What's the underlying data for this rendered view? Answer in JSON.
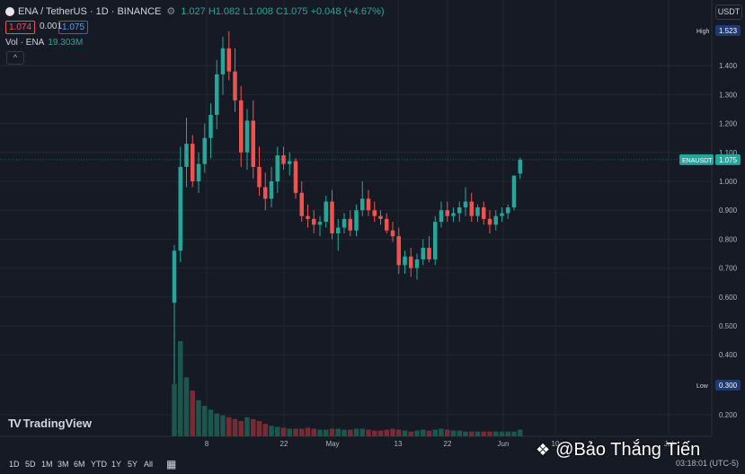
{
  "header": {
    "symbol_line": "ENA / TetherUS · 1D · BINANCE",
    "ohlc": "1.027 H1.082 L1.008 C1.075 +0.048 (+4.67%)",
    "bid": "1.074",
    "spread": "0.001",
    "ask": "1.075",
    "volume_label": "Vol · ENA",
    "volume_value": "19.303M",
    "collapse_glyph": "^",
    "currency": "USDT"
  },
  "price_axis": {
    "ticks": [
      "1.400",
      "1.300",
      "1.200",
      "1.100",
      "1.000",
      "0.900",
      "0.800",
      "0.700",
      "0.600",
      "0.500",
      "0.400",
      "0.200"
    ],
    "high_label": "High",
    "high_value": "1.523",
    "low_label": "Low",
    "low_value": "0.300",
    "last_label": "ENAUSDT",
    "last_value": "1.075"
  },
  "time_axis": {
    "labels": [
      "8",
      "22",
      "May",
      "13",
      "22",
      "Jun",
      "10",
      "Jul"
    ]
  },
  "colors": {
    "up": "#26a69a",
    "down": "#ef5350",
    "background": "#161a25",
    "grid": "#222631"
  },
  "logo": {
    "mark": "TV",
    "text": "TradingView"
  },
  "bottom_bar": {
    "ranges": [
      "1D",
      "5D",
      "1M",
      "3M",
      "6M",
      "YTD",
      "1Y",
      "5Y",
      "All"
    ],
    "calendar_icon": "calendar-icon",
    "time": "03:18:01 (UTC-5)"
  },
  "watermark": "@Bảo Thắng Tiến",
  "chart_data": {
    "type": "candlestick",
    "candles": [
      [
        0.58,
        0.78,
        0.3,
        0.76
      ],
      [
        0.76,
        1.12,
        0.72,
        1.05
      ],
      [
        1.05,
        1.22,
        0.98,
        1.13
      ],
      [
        1.13,
        1.16,
        0.98,
        1.0
      ],
      [
        1.0,
        1.1,
        0.96,
        1.06
      ],
      [
        1.06,
        1.2,
        1.03,
        1.15
      ],
      [
        1.15,
        1.27,
        1.08,
        1.23
      ],
      [
        1.23,
        1.42,
        1.18,
        1.37
      ],
      [
        1.37,
        1.5,
        1.3,
        1.46
      ],
      [
        1.46,
        1.52,
        1.35,
        1.38
      ],
      [
        1.38,
        1.46,
        1.24,
        1.28
      ],
      [
        1.28,
        1.33,
        1.05,
        1.1
      ],
      [
        1.1,
        1.25,
        1.04,
        1.21
      ],
      [
        1.21,
        1.28,
        1.01,
        1.05
      ],
      [
        1.05,
        1.12,
        0.95,
        0.98
      ],
      [
        0.98,
        1.03,
        0.9,
        0.94
      ],
      [
        0.94,
        1.05,
        0.91,
        1.0
      ],
      [
        1.0,
        1.12,
        0.96,
        1.09
      ],
      [
        1.09,
        1.12,
        1.04,
        1.06
      ],
      [
        1.06,
        1.1,
        1.02,
        1.07
      ],
      [
        1.07,
        1.08,
        0.94,
        0.96
      ],
      [
        0.96,
        1.0,
        0.86,
        0.88
      ],
      [
        0.88,
        0.92,
        0.84,
        0.87
      ],
      [
        0.87,
        0.9,
        0.82,
        0.85
      ],
      [
        0.85,
        0.88,
        0.81,
        0.86
      ],
      [
        0.86,
        0.95,
        0.84,
        0.93
      ],
      [
        0.93,
        0.97,
        0.8,
        0.82
      ],
      [
        0.82,
        0.87,
        0.76,
        0.84
      ],
      [
        0.84,
        0.89,
        0.82,
        0.87
      ],
      [
        0.87,
        0.9,
        0.81,
        0.83
      ],
      [
        0.83,
        0.92,
        0.81,
        0.9
      ],
      [
        0.9,
        1.0,
        0.88,
        0.94
      ],
      [
        0.94,
        0.97,
        0.88,
        0.9
      ],
      [
        0.9,
        0.93,
        0.86,
        0.88
      ],
      [
        0.88,
        0.9,
        0.85,
        0.87
      ],
      [
        0.87,
        0.89,
        0.82,
        0.83
      ],
      [
        0.83,
        0.86,
        0.79,
        0.81
      ],
      [
        0.81,
        0.84,
        0.68,
        0.71
      ],
      [
        0.71,
        0.76,
        0.68,
        0.74
      ],
      [
        0.74,
        0.77,
        0.67,
        0.7
      ],
      [
        0.7,
        0.75,
        0.66,
        0.73
      ],
      [
        0.73,
        0.8,
        0.71,
        0.77
      ],
      [
        0.77,
        0.81,
        0.72,
        0.73
      ],
      [
        0.73,
        0.88,
        0.71,
        0.86
      ],
      [
        0.86,
        0.93,
        0.84,
        0.9
      ],
      [
        0.9,
        0.93,
        0.86,
        0.88
      ],
      [
        0.88,
        0.91,
        0.86,
        0.89
      ],
      [
        0.89,
        0.93,
        0.86,
        0.91
      ],
      [
        0.91,
        0.98,
        0.88,
        0.93
      ],
      [
        0.93,
        0.96,
        0.86,
        0.88
      ],
      [
        0.88,
        0.92,
        0.86,
        0.91
      ],
      [
        0.91,
        0.93,
        0.85,
        0.87
      ],
      [
        0.87,
        0.9,
        0.82,
        0.85
      ],
      [
        0.85,
        0.9,
        0.83,
        0.88
      ],
      [
        0.88,
        0.91,
        0.86,
        0.89
      ],
      [
        0.89,
        0.92,
        0.87,
        0.91
      ],
      [
        0.91,
        1.02,
        0.9,
        1.02
      ],
      [
        1.027,
        1.082,
        1.008,
        1.075
      ]
    ],
    "volumes": [
      55,
      100,
      62,
      48,
      38,
      32,
      28,
      24,
      22,
      20,
      18,
      16,
      20,
      18,
      16,
      13,
      11,
      10,
      9,
      8,
      8,
      8,
      9,
      8,
      7,
      7,
      8,
      8,
      7,
      7,
      8,
      8,
      7,
      6,
      6,
      7,
      8,
      7,
      6,
      5,
      6,
      7,
      6,
      7,
      8,
      7,
      6,
      6,
      5,
      5,
      5,
      5,
      5,
      5,
      5,
      5,
      5,
      7
    ]
  }
}
